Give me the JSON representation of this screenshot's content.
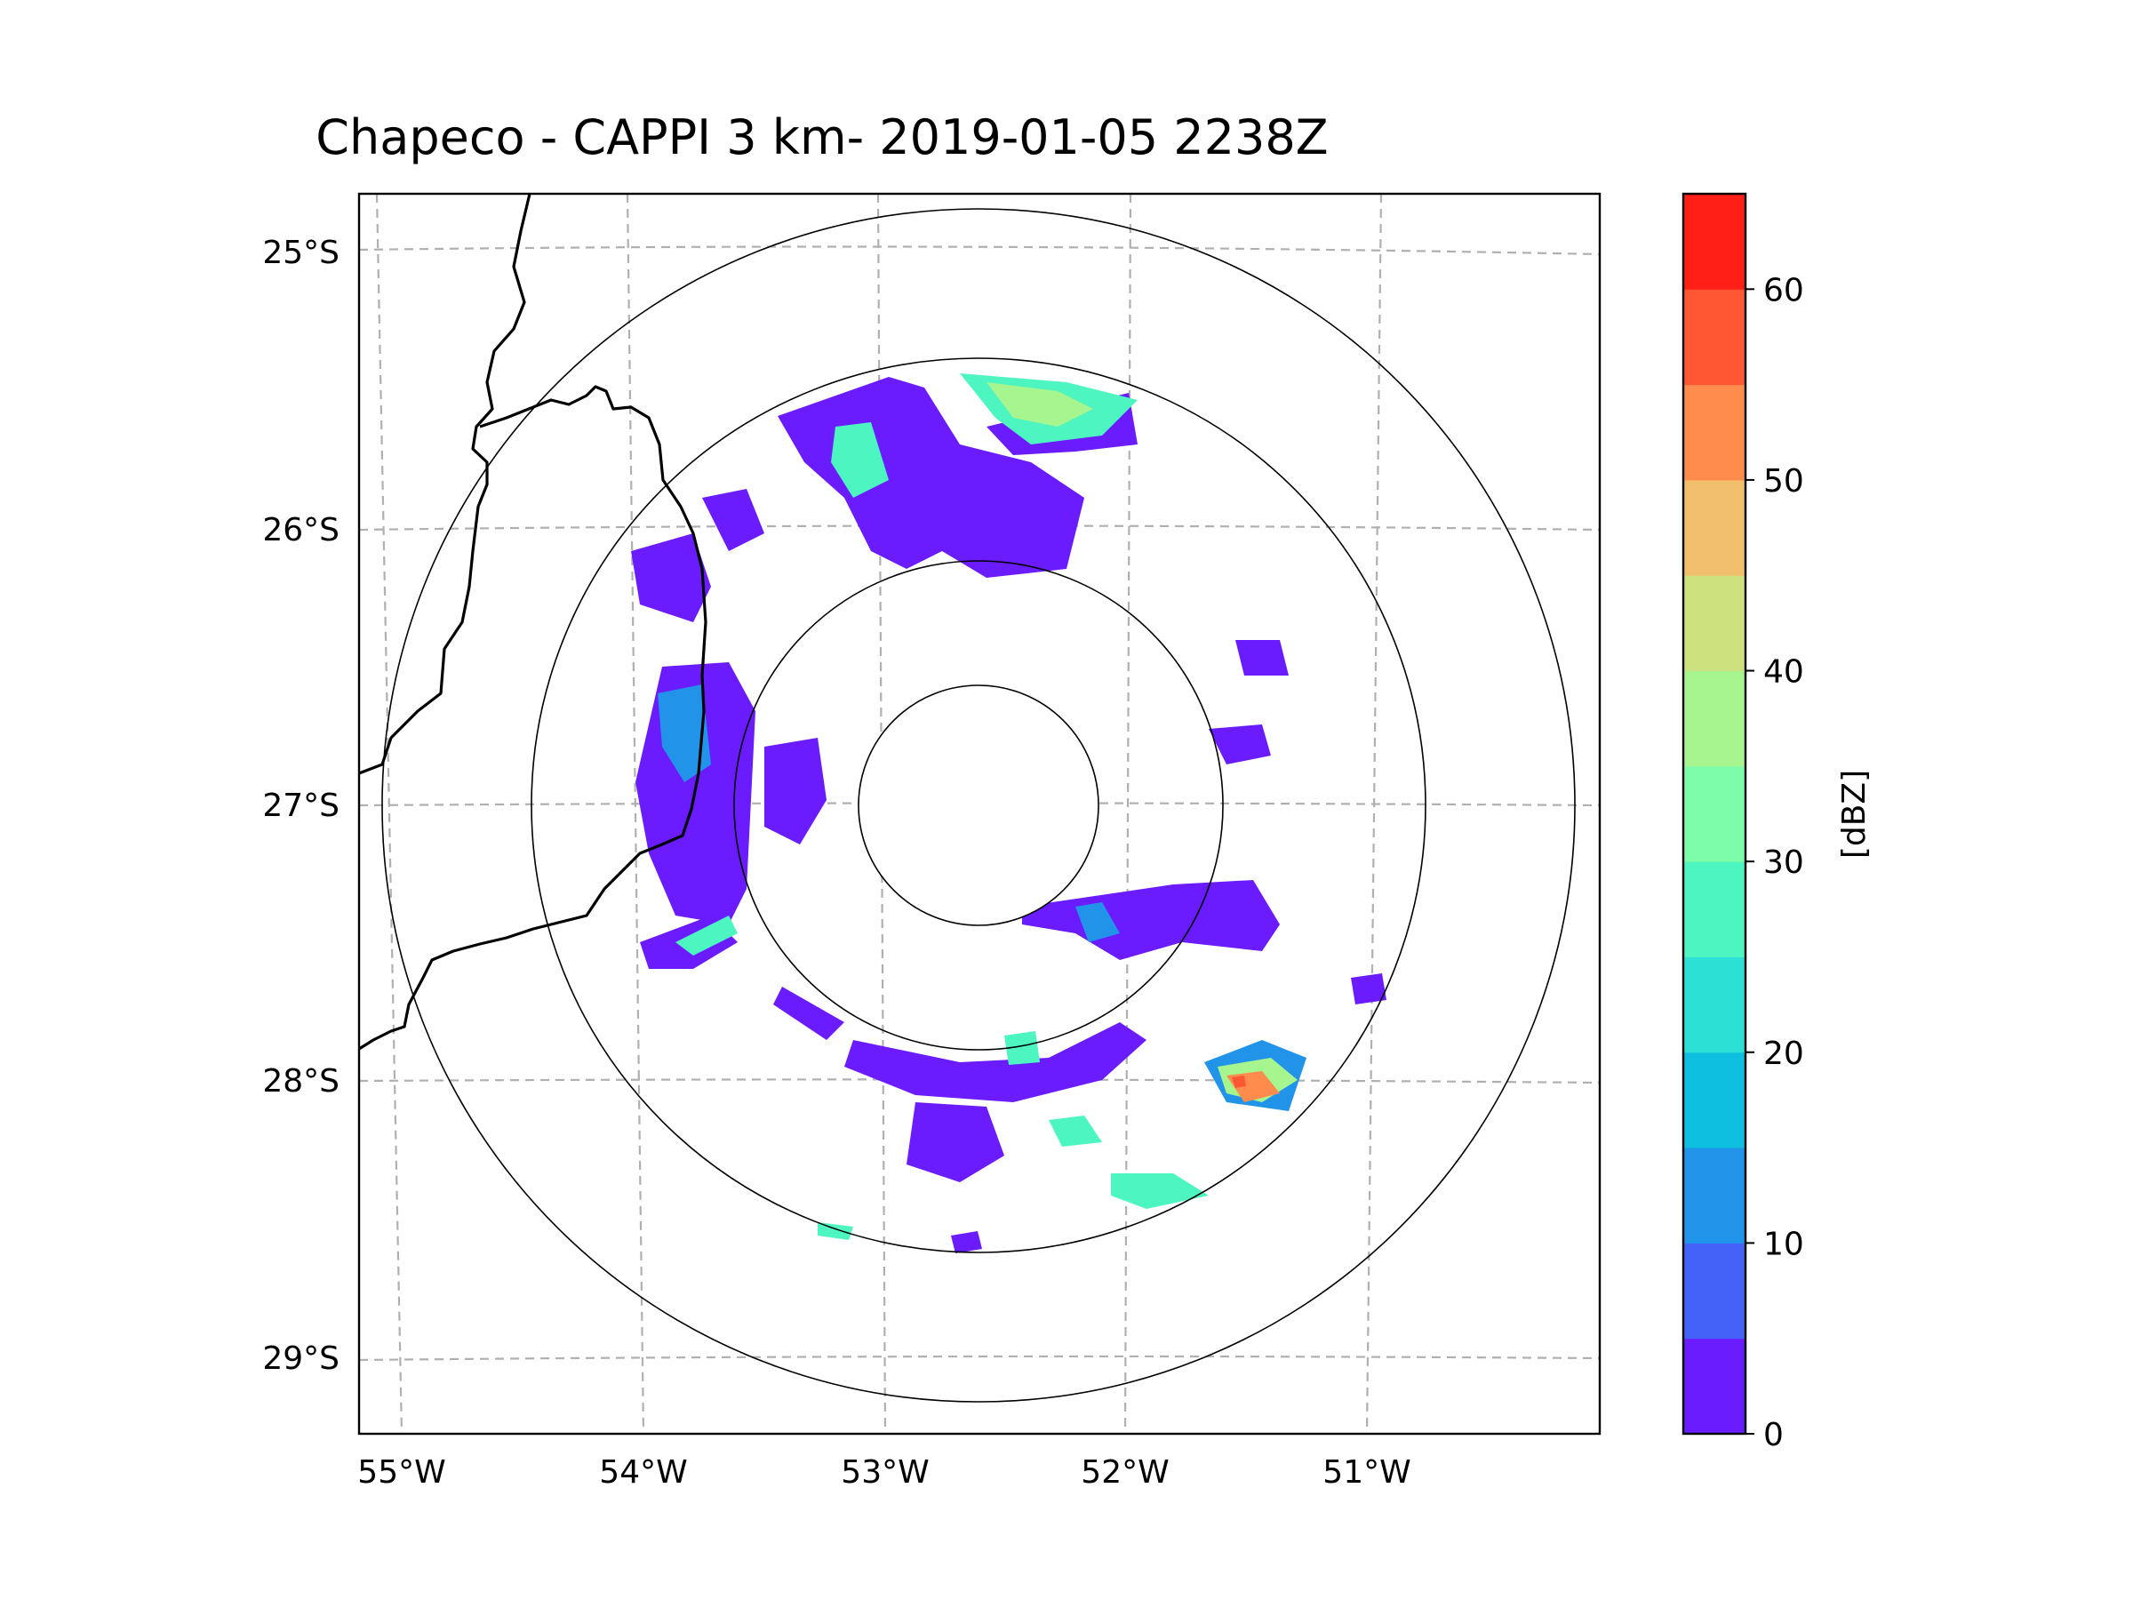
{
  "title": "Chapeco - CAPPI 3 km- 2019-01-05 2238Z",
  "map": {
    "lat_ticks": [
      "25°S",
      "26°S",
      "27°S",
      "28°S",
      "29°S"
    ],
    "lon_ticks": [
      "55°W",
      "54°W",
      "53°W",
      "52°W",
      "51°W"
    ],
    "extent": {
      "lon_min": -55.2,
      "lon_max": -50.05,
      "lat_min": -29.3,
      "lat_max": -24.8
    },
    "radar_center": {
      "lon": -52.6,
      "lat": -27.05
    },
    "range_rings": 4
  },
  "colorbar": {
    "label": "[dBZ]",
    "ticks": [
      "0",
      "10",
      "20",
      "30",
      "40",
      "50",
      "60"
    ],
    "min": 0,
    "max": 65,
    "step": 5,
    "colors": [
      "#6a1cff",
      "#4462f8",
      "#2194ea",
      "#0ebfe0",
      "#2de0d6",
      "#4df5c0",
      "#7dfdaa",
      "#a6f58e",
      "#cde27e",
      "#f2bf6c",
      "#ff8b4d",
      "#ff5733",
      "#ff1f16"
    ]
  },
  "colors": {
    "grid": "#b0b0b0",
    "rings": "#000000",
    "borders": "#000000"
  }
}
